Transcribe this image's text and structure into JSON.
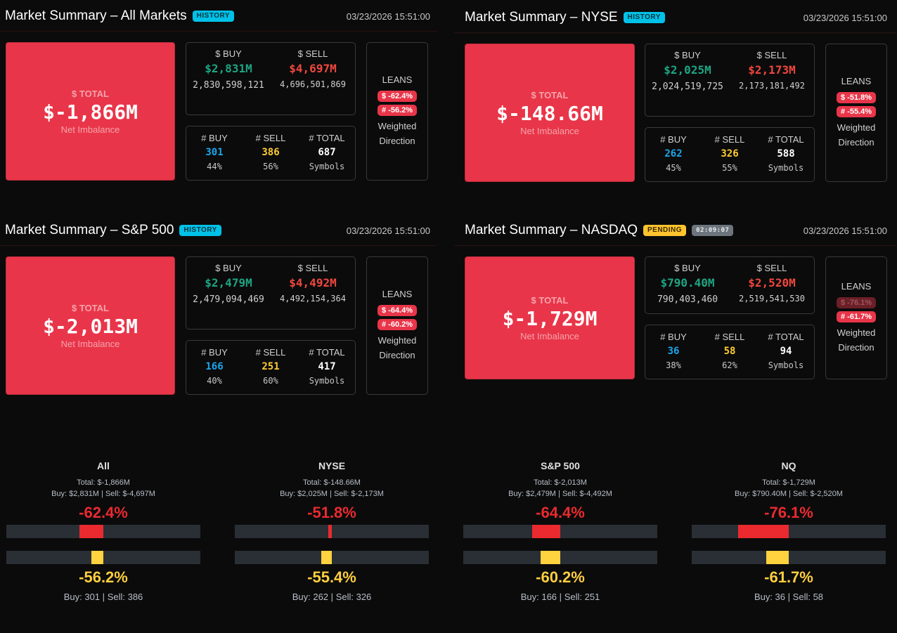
{
  "panels": [
    {
      "title": "Market Summary – All Markets",
      "badge": "HISTORY",
      "timestamp": "03/23/2026 15:51:00",
      "total_label": "$ TOTAL",
      "total_value": "$-1,866M",
      "total_sub": "Net Imbalance",
      "buy_label": "$ BUY",
      "sell_label": "$ SELL",
      "buy_value": "$2,831M",
      "sell_value": "$4,697M",
      "buy_raw": "2,830,598,121",
      "sell_raw": "4,696,501,869",
      "count_buy_label": "# BUY",
      "count_sell_label": "# SELL",
      "count_total_label": "# TOTAL",
      "count_buy": "301",
      "count_sell": "386",
      "count_total": "687",
      "count_buy_pct": "44%",
      "count_sell_pct": "56%",
      "count_total_sub": "Symbols",
      "leans_label": "LEANS",
      "lean_dollar": "$ -62.4%",
      "lean_count": "# -56.2%",
      "leans_sub1": "Weighted",
      "leans_sub2": "Direction"
    },
    {
      "title": "Market Summary – NYSE",
      "badge": "HISTORY",
      "timestamp": "03/23/2026 15:51:00",
      "total_label": "$ TOTAL",
      "total_value": "$-148.66M",
      "total_sub": "Net Imbalance",
      "buy_label": "$ BUY",
      "sell_label": "$ SELL",
      "buy_value": "$2,025M",
      "sell_value": "$2,173M",
      "buy_raw": "2,024,519,725",
      "sell_raw": "2,173,181,492",
      "count_buy_label": "# BUY",
      "count_sell_label": "# SELL",
      "count_total_label": "# TOTAL",
      "count_buy": "262",
      "count_sell": "326",
      "count_total": "588",
      "count_buy_pct": "45%",
      "count_sell_pct": "55%",
      "count_total_sub": "Symbols",
      "leans_label": "LEANS",
      "lean_dollar": "$ -51.8%",
      "lean_count": "# -55.4%",
      "leans_sub1": "Weighted",
      "leans_sub2": "Direction"
    },
    {
      "title": "Market Summary – S&P 500",
      "badge": "HISTORY",
      "timestamp": "03/23/2026 15:51:00",
      "total_label": "$ TOTAL",
      "total_value": "$-2,013M",
      "total_sub": "Net Imbalance",
      "buy_label": "$ BUY",
      "sell_label": "$ SELL",
      "buy_value": "$2,479M",
      "sell_value": "$4,492M",
      "buy_raw": "2,479,094,469",
      "sell_raw": "4,492,154,364",
      "count_buy_label": "# BUY",
      "count_sell_label": "# SELL",
      "count_total_label": "# TOTAL",
      "count_buy": "166",
      "count_sell": "251",
      "count_total": "417",
      "count_buy_pct": "40%",
      "count_sell_pct": "60%",
      "count_total_sub": "Symbols",
      "leans_label": "LEANS",
      "lean_dollar": "$ -64.4%",
      "lean_count": "# -60.2%",
      "leans_sub1": "Weighted",
      "leans_sub2": "Direction"
    },
    {
      "title": "Market Summary – NASDAQ",
      "badge": "PENDING",
      "timer": "02:09:07",
      "timestamp": "03/23/2026 15:51:00",
      "total_label": "$ TOTAL",
      "total_value": "$-1,729M",
      "total_sub": "Net Imbalance",
      "buy_label": "$ BUY",
      "sell_label": "$ SELL",
      "buy_value": "$790.40M",
      "sell_value": "$2,520M",
      "buy_raw": "790,403,460",
      "sell_raw": "2,519,541,530",
      "count_buy_label": "# BUY",
      "count_sell_label": "# SELL",
      "count_total_label": "# TOTAL",
      "count_buy": "36",
      "count_sell": "58",
      "count_total": "94",
      "count_buy_pct": "38%",
      "count_sell_pct": "62%",
      "count_total_sub": "Symbols",
      "leans_label": "LEANS",
      "lean_dollar": "$ -76.1%",
      "lean_count": "# -61.7%",
      "leans_sub1": "Weighted",
      "leans_sub2": "Direction"
    }
  ],
  "gauges": [
    {
      "title": "All",
      "total": "Total: $-1,866M",
      "buy": "Buy: $2,831M",
      "sell": "Sell: $-4,697M",
      "separator": "|",
      "dollar_pct_text": "-62.4%",
      "dollar_pct": -62.4,
      "count_pct_text": "-56.2%",
      "count_pct": -56.2,
      "count_buy": "Buy: 301",
      "count_sell": "Sell: 386"
    },
    {
      "title": "NYSE",
      "total": "Total: $-148.66M",
      "buy": "Buy: $2,025M",
      "sell": "Sell: $-2,173M",
      "separator": "|",
      "dollar_pct_text": "-51.8%",
      "dollar_pct": -51.8,
      "count_pct_text": "-55.4%",
      "count_pct": -55.4,
      "count_buy": "Buy: 262",
      "count_sell": "Sell: 326"
    },
    {
      "title": "S&P 500",
      "total": "Total: $-2,013M",
      "buy": "Buy: $2,479M",
      "sell": "Sell: $-4,492M",
      "separator": "|",
      "dollar_pct_text": "-64.4%",
      "dollar_pct": -64.4,
      "count_pct_text": "-60.2%",
      "count_pct": -60.2,
      "count_buy": "Buy: 166",
      "count_sell": "Sell: 251"
    },
    {
      "title": "NQ",
      "total": "Total: $-1,729M",
      "buy": "Buy: $790.40M",
      "sell": "Sell: $-2,520M",
      "separator": "|",
      "dollar_pct_text": "-76.1%",
      "dollar_pct": -76.1,
      "count_pct_text": "-61.7%",
      "count_pct": -61.7,
      "count_buy": "Buy: 36",
      "count_sell": "Sell: 58"
    }
  ],
  "colors": {
    "total_box": "#e93549",
    "buy": "#1ea583",
    "sell": "#f0473f",
    "count_buy": "#1aa7ec",
    "count_sell": "#ffcc33",
    "history_badge": "#00c2e8",
    "pending_badge": "#ffc42e",
    "gauge_red": "#ea2a2f",
    "gauge_yellow": "#ffd23f"
  }
}
